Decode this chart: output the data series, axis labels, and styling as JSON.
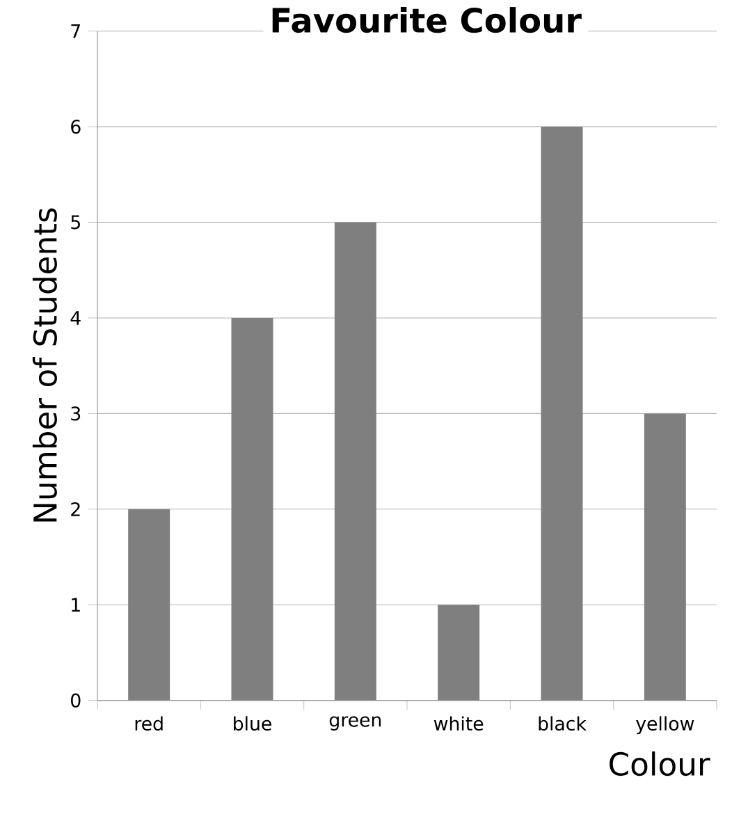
{
  "chart_data": {
    "type": "bar",
    "title": "Favourite Colour",
    "xlabel": "Colour",
    "ylabel": "Number of Students",
    "categories": [
      "red",
      "blue",
      "green",
      "white",
      "black",
      "yellow"
    ],
    "values": [
      2,
      4,
      5,
      1,
      6,
      3
    ],
    "color": "#7f7f7f",
    "ylim": [
      0,
      7
    ],
    "yticks": [
      0,
      1,
      2,
      3,
      4,
      5,
      6,
      7
    ],
    "grid": "y"
  }
}
